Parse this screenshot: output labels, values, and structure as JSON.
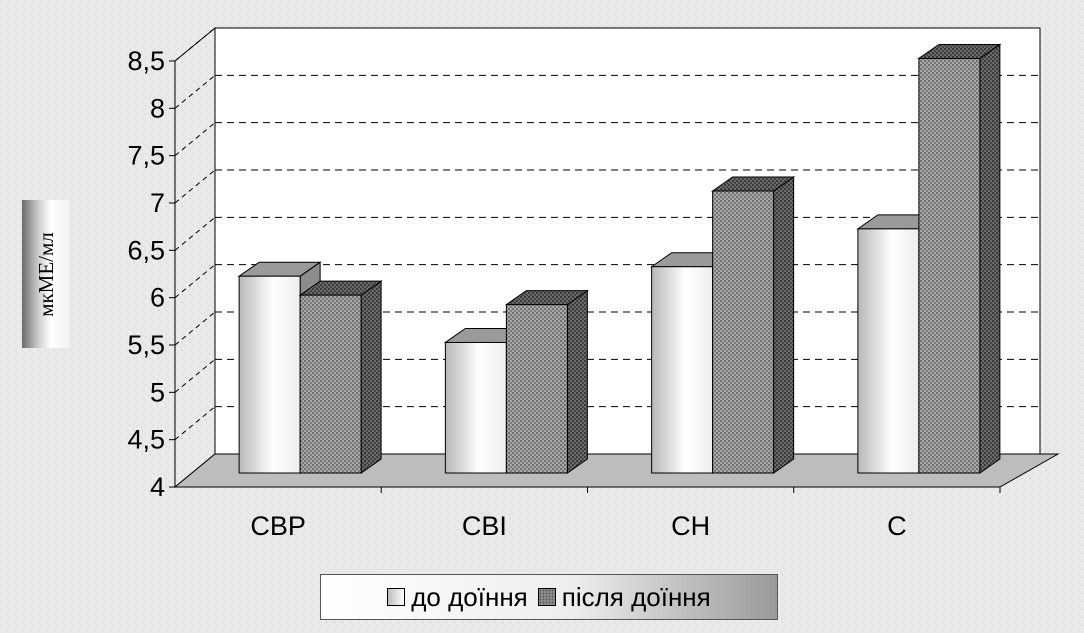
{
  "chart_data": {
    "type": "bar",
    "categories": [
      "СВР",
      "СВІ",
      "СН",
      "С"
    ],
    "series": [
      {
        "name": "до доїння",
        "values": [
          6.1,
          5.4,
          6.2,
          6.6
        ]
      },
      {
        "name": "після доїння",
        "values": [
          5.9,
          5.8,
          7.0,
          8.4
        ]
      }
    ],
    "ylabel": "мкМЕ/мл",
    "ylim": [
      4,
      8.5
    ],
    "yticks": [
      "4",
      "4,5",
      "5",
      "5,5",
      "6",
      "6,5",
      "7",
      "7,5",
      "8",
      "8,5"
    ],
    "grid": "dashed horizontal",
    "legend_position": "bottom",
    "style": "3d clustered bars"
  }
}
